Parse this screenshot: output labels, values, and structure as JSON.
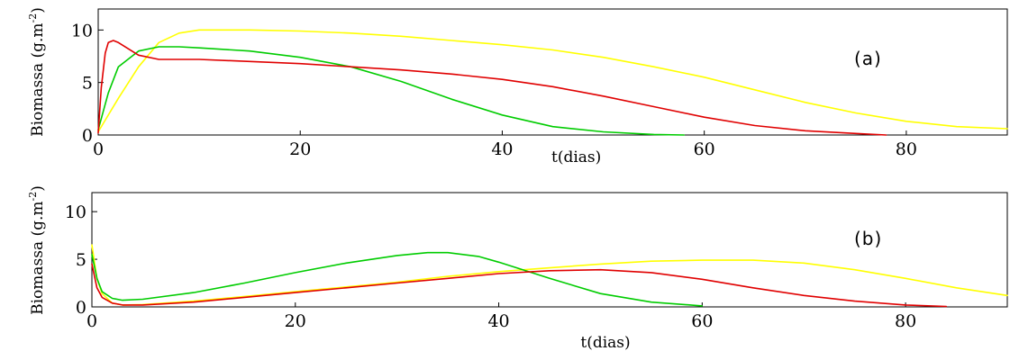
{
  "chart_data": [
    {
      "type": "line",
      "panel_label": "(a)",
      "ylabel": "Biomassa (g.m",
      "ylabel_exp": "-2",
      "ylabel_close": ")",
      "xlabel": "t(dias)",
      "xlim": [
        0,
        90
      ],
      "ylim": [
        0,
        12
      ],
      "x_ticks": [
        0,
        20,
        40,
        60,
        80
      ],
      "y_ticks": [
        0,
        5,
        10
      ],
      "series": [
        {
          "color": "#ffff00",
          "x": [
            0,
            2,
            4,
            6,
            8,
            10,
            15,
            20,
            25,
            30,
            35,
            40,
            45,
            50,
            55,
            60,
            65,
            70,
            75,
            80,
            85,
            90
          ],
          "y": [
            0.3,
            3.5,
            6.5,
            8.8,
            9.7,
            10.0,
            10.0,
            9.9,
            9.7,
            9.4,
            9.0,
            8.6,
            8.1,
            7.4,
            6.5,
            5.5,
            4.3,
            3.1,
            2.1,
            1.3,
            0.8,
            0.6
          ]
        },
        {
          "color": "#00cc00",
          "x": [
            0,
            1,
            2,
            4,
            6,
            8,
            10,
            15,
            20,
            25,
            30,
            35,
            40,
            45,
            50,
            55,
            58
          ],
          "y": [
            0.5,
            4.0,
            6.5,
            8.0,
            8.4,
            8.4,
            8.3,
            8.0,
            7.4,
            6.5,
            5.1,
            3.4,
            1.9,
            0.8,
            0.3,
            0.05,
            0.0
          ]
        },
        {
          "color": "#e00000",
          "x": [
            0,
            0.3,
            0.7,
            1,
            1.5,
            2,
            3,
            4,
            6,
            10,
            15,
            20,
            25,
            30,
            35,
            40,
            45,
            50,
            55,
            60,
            65,
            70,
            75,
            78
          ],
          "y": [
            0.2,
            4.5,
            7.8,
            8.8,
            9.0,
            8.8,
            8.2,
            7.6,
            7.2,
            7.2,
            7.0,
            6.8,
            6.5,
            6.2,
            5.8,
            5.3,
            4.6,
            3.7,
            2.7,
            1.7,
            0.9,
            0.4,
            0.15,
            0.0
          ]
        }
      ]
    },
    {
      "type": "line",
      "panel_label": "(b)",
      "ylabel": "Biomassa (g.m",
      "ylabel_exp": "-2",
      "ylabel_close": ")",
      "xlabel": "t(dias)",
      "xlim": [
        0,
        90
      ],
      "ylim": [
        0,
        12
      ],
      "x_ticks": [
        0,
        20,
        40,
        60,
        80
      ],
      "y_ticks": [
        0,
        5,
        10
      ],
      "series": [
        {
          "color": "#ffff00",
          "x": [
            0,
            0.5,
            1,
            2,
            3,
            5,
            10,
            15,
            20,
            25,
            30,
            35,
            40,
            45,
            50,
            55,
            60,
            65,
            70,
            75,
            80,
            85,
            90
          ],
          "y": [
            6.5,
            3.0,
            1.4,
            0.4,
            0.2,
            0.25,
            0.6,
            1.1,
            1.6,
            2.1,
            2.6,
            3.2,
            3.7,
            4.1,
            4.5,
            4.8,
            4.9,
            4.9,
            4.6,
            3.9,
            3.0,
            2.0,
            1.2
          ]
        },
        {
          "color": "#00cc00",
          "x": [
            0,
            0.5,
            1,
            2,
            3,
            5,
            10,
            15,
            20,
            25,
            30,
            33,
            35,
            38,
            40,
            45,
            50,
            55,
            60
          ],
          "y": [
            5.5,
            3.0,
            1.6,
            0.9,
            0.7,
            0.8,
            1.5,
            2.5,
            3.6,
            4.6,
            5.4,
            5.7,
            5.7,
            5.3,
            4.7,
            3.0,
            1.4,
            0.5,
            0.1
          ]
        },
        {
          "color": "#e00000",
          "x": [
            0,
            0.5,
            1,
            2,
            3,
            5,
            10,
            15,
            20,
            25,
            30,
            35,
            40,
            45,
            50,
            55,
            60,
            65,
            70,
            75,
            80,
            84
          ],
          "y": [
            4.5,
            2.0,
            1.0,
            0.4,
            0.2,
            0.2,
            0.5,
            1.0,
            1.5,
            2.0,
            2.5,
            3.0,
            3.5,
            3.8,
            3.9,
            3.6,
            2.9,
            2.0,
            1.2,
            0.6,
            0.2,
            0.05
          ]
        }
      ]
    }
  ]
}
